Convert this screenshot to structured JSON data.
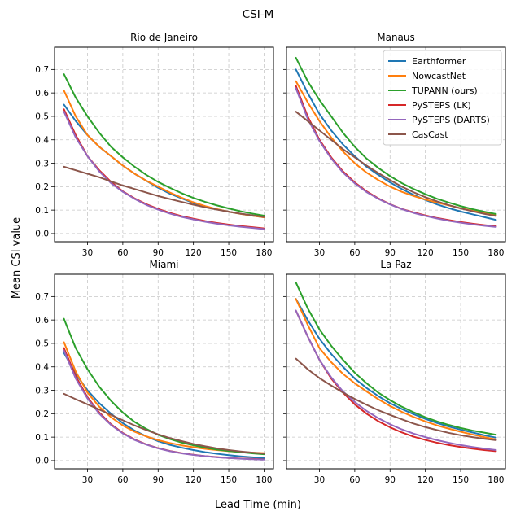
{
  "chart_data": {
    "type": "line",
    "title": "CSI-M",
    "xlabel": "Lead Time (min)",
    "ylabel": "Mean CSI value",
    "xlim": [
      2,
      188
    ],
    "ylim": [
      -0.035,
      0.795
    ],
    "xticks": [
      30,
      60,
      90,
      120,
      150,
      180
    ],
    "xtick_labels": [
      "30",
      "60",
      "90",
      "120",
      "150",
      "180"
    ],
    "yticks": [
      0.0,
      0.1,
      0.2,
      0.3,
      0.4,
      0.5,
      0.6,
      0.7
    ],
    "ytick_labels": [
      "0.0",
      "0.1",
      "0.2",
      "0.3",
      "0.4",
      "0.5",
      "0.6",
      "0.7"
    ],
    "grid": true,
    "legend_position": "top-right of Manaus panel",
    "x": [
      10,
      20,
      30,
      40,
      50,
      60,
      70,
      80,
      90,
      100,
      110,
      120,
      130,
      140,
      150,
      160,
      170,
      180
    ],
    "legend": [
      {
        "name": "Earthformer",
        "color": "#1f77b4"
      },
      {
        "name": "NowcastNet",
        "color": "#ff7f0e"
      },
      {
        "name": "TUPANN (ours)",
        "color": "#2ca02c"
      },
      {
        "name": "PySTEPS (LK)",
        "color": "#d62728"
      },
      {
        "name": "PySTEPS (DARTS)",
        "color": "#9467bd"
      },
      {
        "name": "CasCast",
        "color": "#8c564b"
      }
    ],
    "panels": [
      {
        "title": "Rio de Janeiro",
        "series": [
          {
            "name": "Earthformer",
            "values": [
              0.55,
              0.48,
              0.42,
              0.37,
              0.33,
              0.29,
              0.255,
              0.225,
              0.195,
              0.17,
              0.15,
              0.13,
              0.115,
              0.103,
              0.093,
              0.084,
              0.076,
              0.069
            ]
          },
          {
            "name": "NowcastNet",
            "values": [
              0.61,
              0.5,
              0.42,
              0.37,
              0.33,
              0.29,
              0.255,
              0.225,
              0.2,
              0.175,
              0.153,
              0.133,
              0.117,
              0.104,
              0.093,
              0.084,
              0.076,
              0.069
            ]
          },
          {
            "name": "TUPANN (ours)",
            "values": [
              0.68,
              0.58,
              0.5,
              0.43,
              0.37,
              0.325,
              0.285,
              0.25,
              0.22,
              0.195,
              0.172,
              0.152,
              0.135,
              0.12,
              0.107,
              0.095,
              0.085,
              0.076
            ]
          },
          {
            "name": "PySTEPS (LK)",
            "values": [
              0.53,
              0.42,
              0.33,
              0.27,
              0.22,
              0.18,
              0.15,
              0.125,
              0.105,
              0.088,
              0.074,
              0.063,
              0.053,
              0.045,
              0.038,
              0.032,
              0.027,
              0.022
            ]
          },
          {
            "name": "PySTEPS (DARTS)",
            "values": [
              0.52,
              0.41,
              0.33,
              0.265,
              0.215,
              0.178,
              0.148,
              0.122,
              0.102,
              0.085,
              0.071,
              0.06,
              0.05,
              0.042,
              0.035,
              0.029,
              0.024,
              0.019
            ]
          },
          {
            "name": "CasCast",
            "values": [
              0.285,
              0.27,
              0.255,
              0.24,
              0.222,
              0.205,
              0.19,
              0.175,
              0.16,
              0.147,
              0.135,
              0.123,
              0.112,
              0.102,
              0.093,
              0.085,
              0.078,
              0.071
            ]
          }
        ]
      },
      {
        "title": "Manaus",
        "series": [
          {
            "name": "Earthformer",
            "values": [
              0.7,
              0.6,
              0.51,
              0.44,
              0.38,
              0.33,
              0.285,
              0.25,
              0.218,
              0.19,
              0.165,
              0.143,
              0.124,
              0.108,
              0.094,
              0.082,
              0.07,
              0.058
            ]
          },
          {
            "name": "NowcastNet",
            "values": [
              0.65,
              0.56,
              0.48,
              0.41,
              0.35,
              0.3,
              0.26,
              0.228,
              0.2,
              0.178,
              0.16,
              0.145,
              0.132,
              0.12,
              0.108,
              0.097,
              0.087,
              0.078
            ]
          },
          {
            "name": "TUPANN (ours)",
            "values": [
              0.75,
              0.65,
              0.57,
              0.5,
              0.43,
              0.37,
              0.32,
              0.28,
              0.245,
              0.215,
              0.19,
              0.168,
              0.148,
              0.132,
              0.117,
              0.104,
              0.093,
              0.083
            ]
          },
          {
            "name": "PySTEPS (LK)",
            "values": [
              0.63,
              0.5,
              0.4,
              0.325,
              0.265,
              0.218,
              0.18,
              0.15,
              0.125,
              0.105,
              0.09,
              0.077,
              0.066,
              0.057,
              0.049,
              0.042,
              0.036,
              0.031
            ]
          },
          {
            "name": "PySTEPS (DARTS)",
            "values": [
              0.62,
              0.49,
              0.395,
              0.32,
              0.26,
              0.214,
              0.177,
              0.148,
              0.124,
              0.104,
              0.088,
              0.075,
              0.064,
              0.054,
              0.046,
              0.039,
              0.033,
              0.028
            ]
          },
          {
            "name": "CasCast",
            "values": [
              0.52,
              0.48,
              0.44,
              0.4,
              0.36,
              0.325,
              0.29,
              0.258,
              0.228,
              0.2,
              0.176,
              0.155,
              0.137,
              0.121,
              0.107,
              0.095,
              0.084,
              0.075
            ]
          }
        ]
      },
      {
        "title": "Miami",
        "series": [
          {
            "name": "Earthformer",
            "values": [
              0.46,
              0.37,
              0.3,
              0.245,
              0.2,
              0.16,
              0.128,
              0.103,
              0.083,
              0.067,
              0.055,
              0.045,
              0.036,
              0.029,
              0.023,
              0.018,
              0.014,
              0.01
            ]
          },
          {
            "name": "NowcastNet",
            "values": [
              0.505,
              0.38,
              0.29,
              0.23,
              0.185,
              0.15,
              0.123,
              0.103,
              0.087,
              0.075,
              0.065,
              0.057,
              0.05,
              0.045,
              0.04,
              0.037,
              0.034,
              0.032
            ]
          },
          {
            "name": "TUPANN (ours)",
            "values": [
              0.605,
              0.48,
              0.39,
              0.315,
              0.255,
              0.205,
              0.165,
              0.135,
              0.11,
              0.092,
              0.077,
              0.065,
              0.055,
              0.047,
              0.041,
              0.036,
              0.031,
              0.027
            ]
          },
          {
            "name": "PySTEPS (LK)",
            "values": [
              0.48,
              0.36,
              0.27,
              0.205,
              0.155,
              0.118,
              0.09,
              0.069,
              0.053,
              0.041,
              0.032,
              0.025,
              0.019,
              0.015,
              0.011,
              0.009,
              0.007,
              0.005
            ]
          },
          {
            "name": "PySTEPS (DARTS)",
            "values": [
              0.47,
              0.35,
              0.265,
              0.2,
              0.152,
              0.116,
              0.088,
              0.068,
              0.052,
              0.04,
              0.031,
              0.024,
              0.019,
              0.014,
              0.011,
              0.008,
              0.006,
              0.004
            ]
          },
          {
            "name": "CasCast",
            "values": [
              0.285,
              0.262,
              0.24,
              0.218,
              0.195,
              0.172,
              0.15,
              0.13,
              0.112,
              0.096,
              0.083,
              0.071,
              0.061,
              0.052,
              0.045,
              0.039,
              0.034,
              0.03
            ]
          }
        ]
      },
      {
        "title": "La Paz",
        "series": [
          {
            "name": "Earthformer",
            "values": [
              0.69,
              0.6,
              0.52,
              0.455,
              0.4,
              0.35,
              0.31,
              0.275,
              0.245,
              0.22,
              0.198,
              0.178,
              0.16,
              0.145,
              0.132,
              0.12,
              0.108,
              0.098
            ]
          },
          {
            "name": "NowcastNet",
            "values": [
              0.69,
              0.58,
              0.48,
              0.42,
              0.37,
              0.33,
              0.295,
              0.262,
              0.233,
              0.208,
              0.186,
              0.167,
              0.15,
              0.136,
              0.123,
              0.111,
              0.1,
              0.09
            ]
          },
          {
            "name": "TUPANN (ours)",
            "values": [
              0.76,
              0.65,
              0.56,
              0.49,
              0.43,
              0.375,
              0.33,
              0.29,
              0.258,
              0.23,
              0.206,
              0.185,
              0.167,
              0.152,
              0.139,
              0.128,
              0.119,
              0.11
            ]
          },
          {
            "name": "PySTEPS (LK)",
            "values": [
              0.64,
              0.53,
              0.43,
              0.35,
              0.29,
              0.24,
              0.2,
              0.168,
              0.142,
              0.12,
              0.102,
              0.088,
              0.076,
              0.066,
              0.058,
              0.051,
              0.045,
              0.04
            ]
          },
          {
            "name": "PySTEPS (DARTS)",
            "values": [
              0.64,
              0.53,
              0.43,
              0.355,
              0.295,
              0.25,
              0.212,
              0.181,
              0.155,
              0.133,
              0.115,
              0.1,
              0.087,
              0.076,
              0.066,
              0.058,
              0.051,
              0.045
            ]
          },
          {
            "name": "CasCast",
            "values": [
              0.435,
              0.39,
              0.352,
              0.32,
              0.29,
              0.263,
              0.238,
              0.215,
              0.195,
              0.176,
              0.158,
              0.143,
              0.13,
              0.118,
              0.108,
              0.1,
              0.093,
              0.087
            ]
          }
        ]
      }
    ]
  }
}
